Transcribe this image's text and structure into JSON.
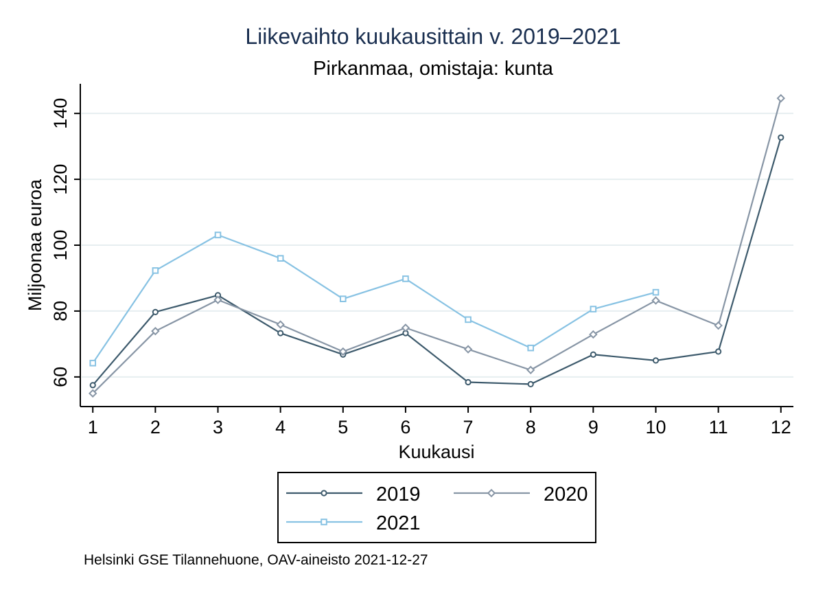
{
  "chart_data": {
    "type": "line",
    "title": "Liikevaihto kuukausittain v. 2019–2021",
    "subtitle": "Pirkanmaa, omistaja: kunta",
    "xlabel": "Kuukausi",
    "ylabel": "Miljoonaa euroa",
    "x": [
      1,
      2,
      3,
      4,
      5,
      6,
      7,
      8,
      9,
      10,
      11,
      12
    ],
    "xlim": [
      0.8,
      12.2
    ],
    "ylim": [
      51,
      149
    ],
    "yticks": [
      60,
      80,
      100,
      120,
      140
    ],
    "grid": true,
    "legend_position": "bottom",
    "note": "Helsinki GSE Tilannehuone, OAV-aineisto 2021-12-27",
    "series": [
      {
        "name": "2019",
        "color": "#3d5a6c",
        "marker": "circle",
        "values": [
          57.5,
          79.7,
          84.8,
          73.3,
          66.8,
          73.3,
          58.4,
          57.8,
          66.8,
          65.0,
          67.7,
          132.7
        ]
      },
      {
        "name": "2020",
        "color": "#8795a5",
        "marker": "diamond",
        "values": [
          55.0,
          73.9,
          83.4,
          75.9,
          67.7,
          74.9,
          68.4,
          62.1,
          72.9,
          83.2,
          75.6,
          144.6
        ]
      },
      {
        "name": "2021",
        "color": "#87c2e3",
        "marker": "square",
        "values": [
          64.2,
          92.3,
          103.1,
          96.0,
          83.7,
          89.8,
          77.4,
          68.8,
          80.6,
          85.7,
          null,
          null
        ]
      }
    ]
  }
}
